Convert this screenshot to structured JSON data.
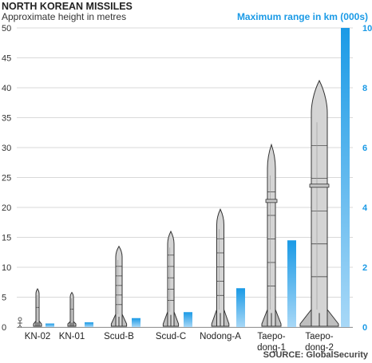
{
  "chart_data": {
    "type": "bar",
    "title": "NORTH KOREAN MISSILES",
    "subtitle": "Approximate height in metres",
    "right_axis_title": "Maximum range in km (000s)",
    "source": "SOURCE: GlobalSecurity",
    "categories": [
      {
        "label": [
          "KN-02"
        ],
        "height_m": 6.4,
        "range_kkm": 0.12
      },
      {
        "label": [
          "KN-01"
        ],
        "height_m": 5.8,
        "range_kkm": 0.16
      },
      {
        "label": [
          "Scud-B"
        ],
        "height_m": 13.5,
        "range_kkm": 0.3
      },
      {
        "label": [
          "Scud-C"
        ],
        "height_m": 16,
        "range_kkm": 0.5
      },
      {
        "label": [
          "Nodong-A"
        ],
        "height_m": 19.7,
        "range_kkm": 1.3
      },
      {
        "label": [
          "Taepo-",
          "dong-1"
        ],
        "height_m": 30.5,
        "range_kkm": 2.9
      },
      {
        "label": [
          "Taepo-",
          "dong-2"
        ],
        "height_m": 41.2,
        "range_kkm": 10
      }
    ],
    "left_axis": {
      "min": 0,
      "max": 50,
      "ticks": [
        "0",
        "5",
        "10",
        "15",
        "20",
        "25",
        "30",
        "35",
        "40",
        "45",
        "50"
      ]
    },
    "right_axis": {
      "min": 0,
      "max": 10,
      "ticks": [
        "0",
        "2",
        "4",
        "6",
        "8",
        "10"
      ]
    },
    "series": [
      {
        "name": "height",
        "representation": "missile silhouettes",
        "axis": "left"
      },
      {
        "name": "range",
        "representation": "blue bars",
        "axis": "right"
      }
    ],
    "grid": true,
    "colors": {
      "bar": "#1a9ae6",
      "bar_faded": "#a8d8f7",
      "grid": "#d9d9d9",
      "missile_body": "#d4d4d4",
      "missile_outline": "#333333"
    }
  }
}
